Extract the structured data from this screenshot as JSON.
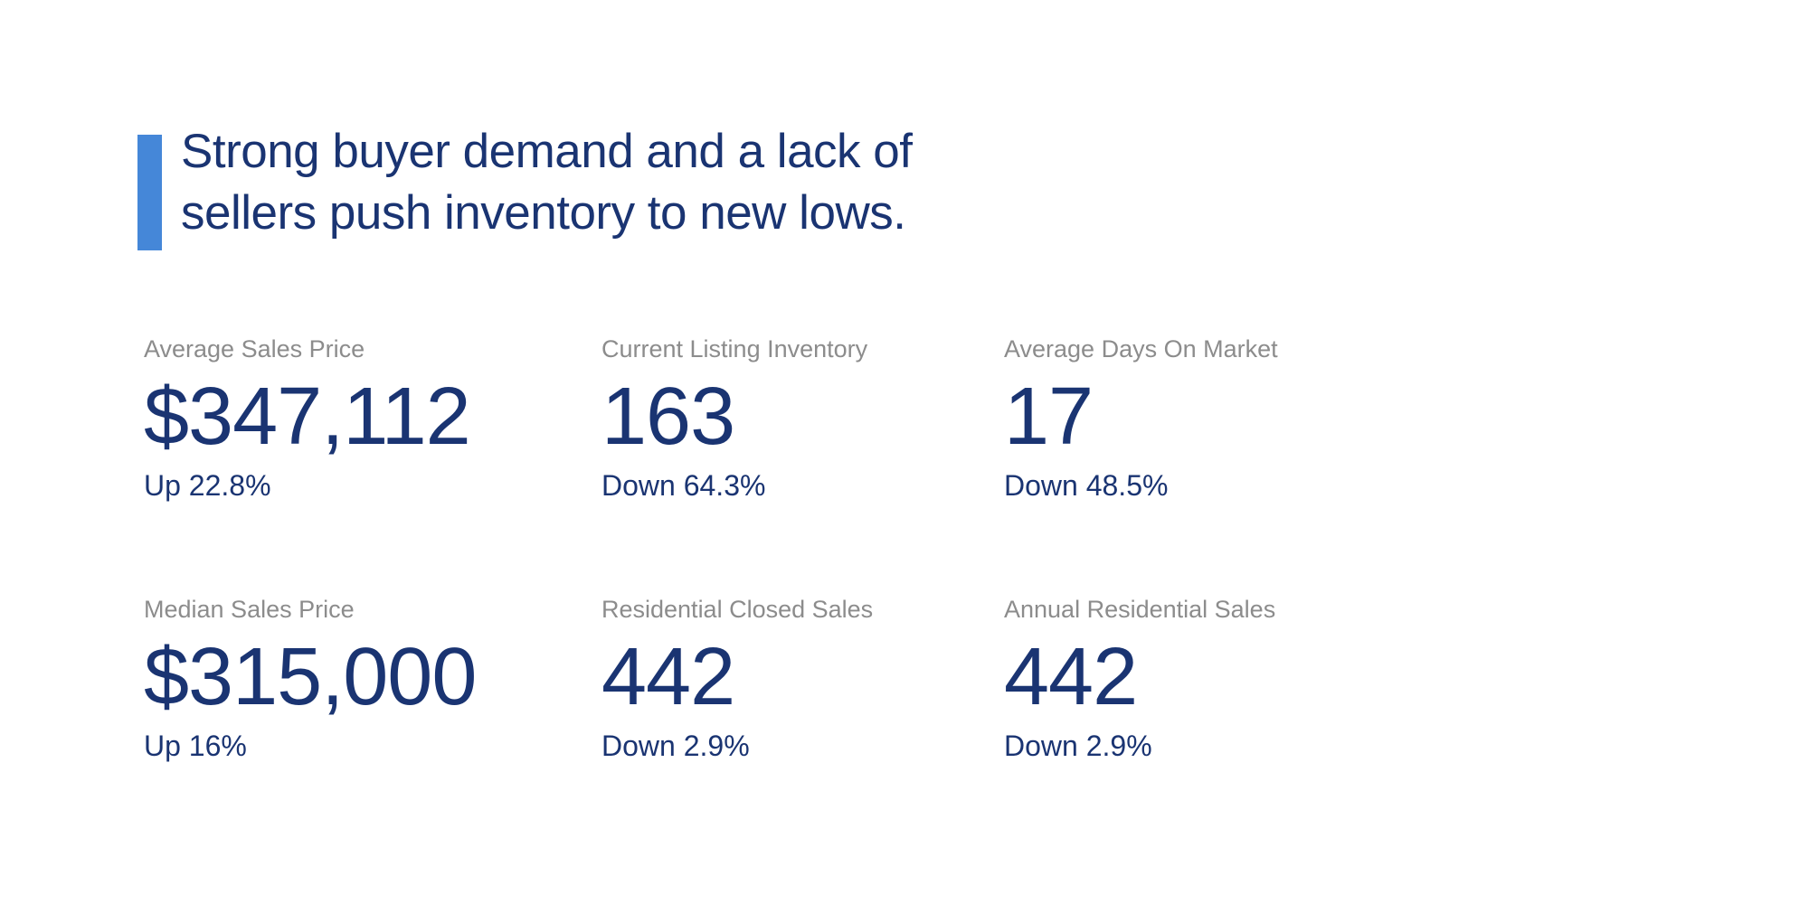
{
  "headline": {
    "line1": "Strong buyer demand and a lack of",
    "line2": "sellers push inventory to new lows."
  },
  "stats": [
    {
      "label": "Average Sales Price",
      "value": "$347,112",
      "change": "Up 22.8%"
    },
    {
      "label": "Current Listing Inventory",
      "value": "163",
      "change": "Down 64.3%"
    },
    {
      "label": "Average Days On Market",
      "value": "17",
      "change": "Down 48.5%"
    },
    {
      "label": "Median Sales Price",
      "value": "$315,000",
      "change": "Up 16%"
    },
    {
      "label": "Residential Closed Sales",
      "value": "442",
      "change": "Down 2.9%"
    },
    {
      "label": "Annual Residential Sales",
      "value": "442",
      "change": "Down 2.9%"
    }
  ],
  "colors": {
    "accent_blue": "#4587d8",
    "navy_text": "#1a3472",
    "label_gray": "#8c8c8c",
    "background": "#ffffff"
  }
}
